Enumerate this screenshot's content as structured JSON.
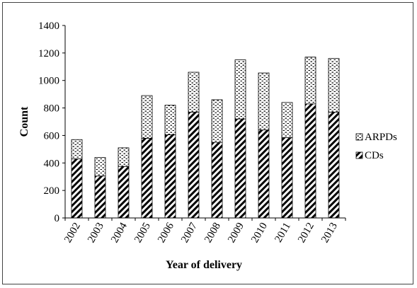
{
  "chart_data": {
    "type": "bar",
    "stacked": true,
    "title": "",
    "xlabel": "Year of delivery",
    "ylabel": "Count",
    "ylim": [
      0,
      1400
    ],
    "yticks": [
      0,
      200,
      400,
      600,
      800,
      1000,
      1200,
      1400
    ],
    "grid": false,
    "legend_position": "right",
    "categories": [
      "2002",
      "2003",
      "2004",
      "2005",
      "2006",
      "2007",
      "2008",
      "2009",
      "2010",
      "2011",
      "2012",
      "2013"
    ],
    "series": [
      {
        "name": "CDs",
        "pattern": "diagonal-hatch",
        "values": [
          430,
          305,
          375,
          580,
          605,
          770,
          550,
          720,
          640,
          585,
          830,
          770
        ]
      },
      {
        "name": "ARPDs",
        "pattern": "dotted",
        "values": [
          140,
          135,
          135,
          310,
          215,
          290,
          310,
          430,
          415,
          255,
          340,
          390
        ]
      }
    ],
    "legend": [
      "ARPDs",
      "CDs"
    ]
  }
}
